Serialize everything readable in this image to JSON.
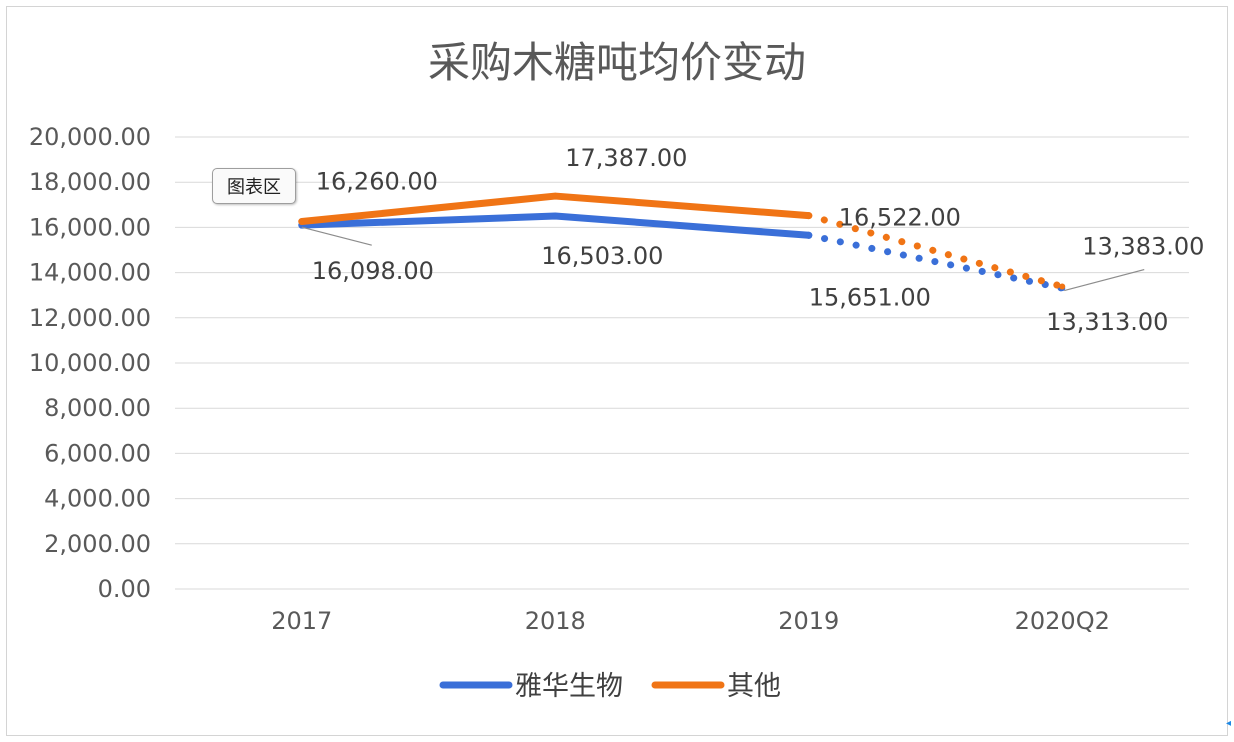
{
  "chart_data": {
    "type": "line",
    "title": "采购木糖吨均价变动",
    "categories": [
      "2017",
      "2018",
      "2019",
      "2020Q2"
    ],
    "ylim": [
      0,
      20000
    ],
    "y_ticks": [
      "0.00",
      "2,000.00",
      "4,000.00",
      "6,000.00",
      "8,000.00",
      "10,000.00",
      "12,000.00",
      "14,000.00",
      "16,000.00",
      "18,000.00",
      "20,000.00"
    ],
    "grid": true,
    "legend_position": "bottom",
    "series": [
      {
        "name": "雅华生物",
        "color": "#3A6FD8",
        "values": [
          16098,
          16503,
          15651,
          13313
        ],
        "data_labels": [
          "16,098.00",
          "16,503.00",
          "15,651.00",
          "13,313.00"
        ],
        "dashed_from_index": 2
      },
      {
        "name": "其他",
        "color": "#F07415",
        "values": [
          16260,
          17387,
          16522,
          13383
        ],
        "data_labels": [
          "16,260.00",
          "17,387.00",
          "16,522.00",
          "13,383.00"
        ],
        "dashed_from_index": 2
      }
    ]
  },
  "tooltip": {
    "label": "图表区"
  }
}
